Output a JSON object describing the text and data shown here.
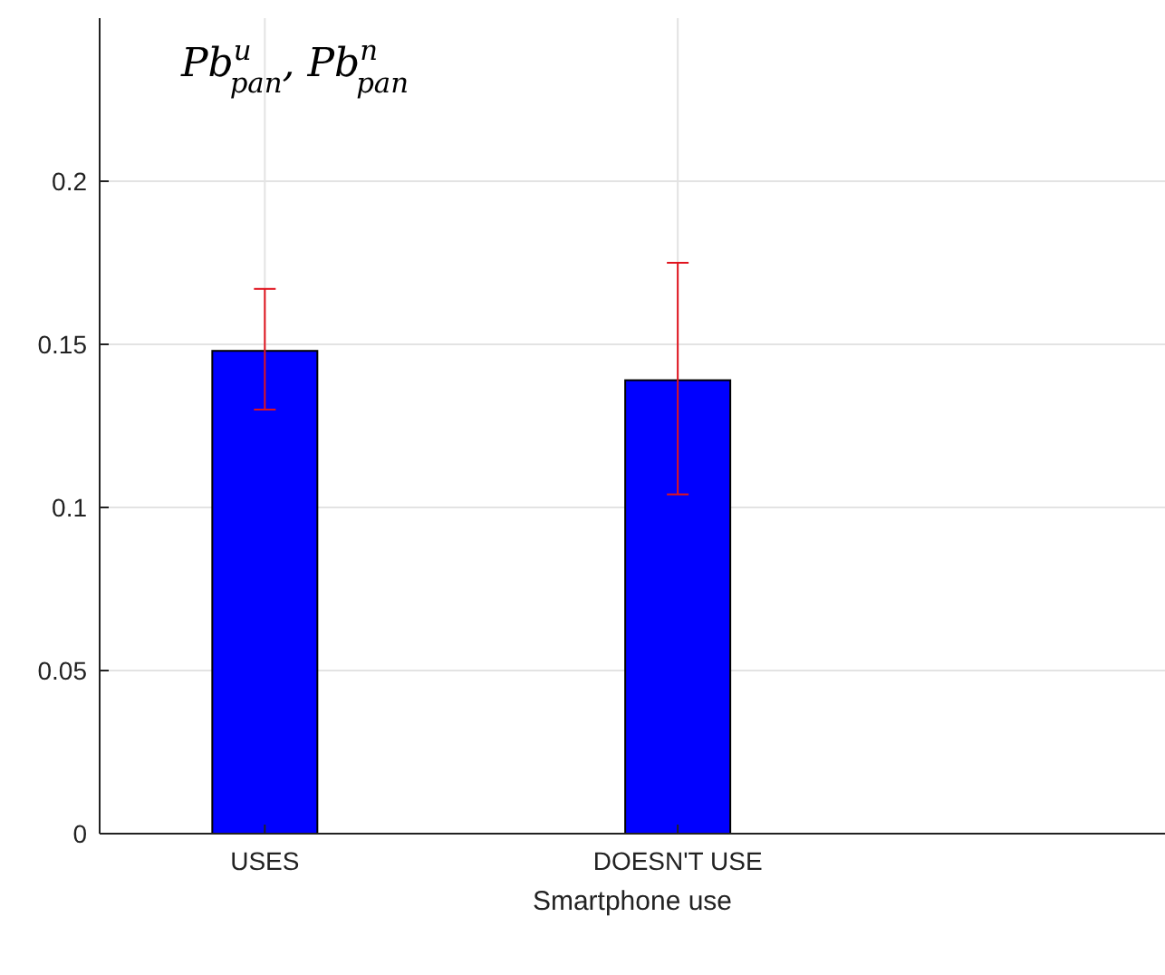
{
  "chart_data": {
    "type": "bar",
    "title": "Pb$^{u}$$_{pan}$, Pb$^{n}$$_{pan}$",
    "xlabel": "Smartphone use",
    "categories": [
      "USES",
      "DOESN'T USE"
    ],
    "series": [
      {
        "color": "#0000ff",
        "values": [
          0.148,
          0.139
        ],
        "errors": [
          [
            0.13,
            0.167
          ],
          [
            0.104,
            0.175
          ]
        ]
      }
    ],
    "ylim": [
      0,
      0.25
    ],
    "yticks": [
      0,
      0.05,
      {
        "value": 0.1,
        "label": "0.1"
      },
      0.15,
      {
        "value": 0.2,
        "label": "0.2"
      }
    ],
    "grid": true
  }
}
